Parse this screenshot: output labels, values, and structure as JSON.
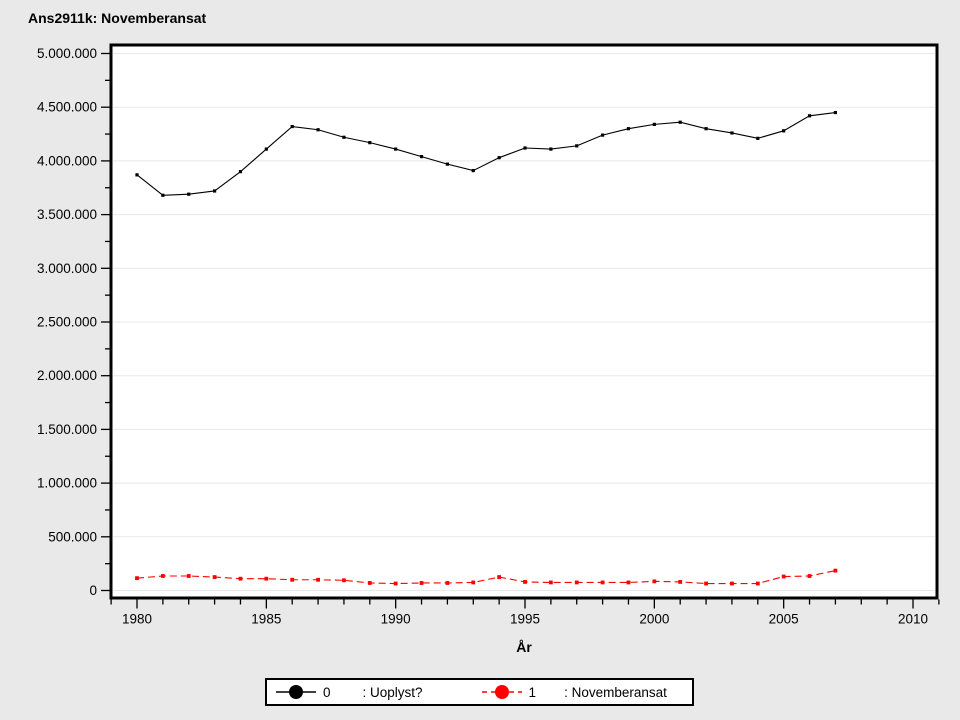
{
  "window": {
    "title": "Ans2911k: Novemberansat"
  },
  "colors": {
    "page_background": "#e9e9e9",
    "plot_background": "#ffffff",
    "axis_frame": "#000000",
    "gridline": "#e8e8e8",
    "series0": "#000000",
    "series1": "#ff0000"
  },
  "chart_data": {
    "type": "line",
    "title": "Ans2911k: Novemberansat",
    "xlabel": "År",
    "ylabel": "",
    "x": [
      1980,
      1981,
      1982,
      1983,
      1984,
      1985,
      1986,
      1987,
      1988,
      1989,
      1990,
      1991,
      1992,
      1993,
      1994,
      1995,
      1996,
      1997,
      1998,
      1999,
      2000,
      2001,
      2002,
      2003,
      2004,
      2005,
      2006,
      2007
    ],
    "series": [
      {
        "name": "0",
        "legend_label": ": Uoplyst?",
        "color": "#000000",
        "line_style": "solid",
        "marker": "square",
        "values": [
          3870000,
          3680000,
          3690000,
          3720000,
          3900000,
          4110000,
          4320000,
          4290000,
          4220000,
          4170000,
          4110000,
          4040000,
          3970000,
          3910000,
          4030000,
          4120000,
          4110000,
          4140000,
          4240000,
          4300000,
          4340000,
          4360000,
          4300000,
          4260000,
          4210000,
          4280000,
          4420000,
          4450000
        ]
      },
      {
        "name": "1",
        "legend_label": ": Novemberansat",
        "color": "#ff0000",
        "line_style": "dashed",
        "marker": "square",
        "values": [
          115000,
          135000,
          135000,
          125000,
          110000,
          110000,
          100000,
          100000,
          95000,
          70000,
          65000,
          70000,
          70000,
          75000,
          125000,
          80000,
          75000,
          75000,
          75000,
          75000,
          85000,
          80000,
          65000,
          65000,
          65000,
          130000,
          135000,
          185000
        ]
      }
    ],
    "xlim": [
      1979,
      2011
    ],
    "ylim": [
      0,
      5000000
    ],
    "x_major_ticks": [
      1980,
      1985,
      1990,
      1995,
      2000,
      2005,
      2010
    ],
    "x_tick_labels": [
      "1980",
      "1985",
      "1990",
      "1995",
      "2000",
      "2005",
      "2010"
    ],
    "x_minor_step": 1,
    "y_major_ticks": [
      0,
      500000,
      1000000,
      1500000,
      2000000,
      2500000,
      3000000,
      3500000,
      4000000,
      4500000,
      5000000
    ],
    "y_tick_labels": [
      "0",
      "500.000",
      "1.000.000",
      "1.500.000",
      "2.000.000",
      "2.500.000",
      "3.000.000",
      "3.500.000",
      "4.000.000",
      "4.500.000",
      "5.000.000"
    ],
    "y_minor_step": 250000,
    "grid": "horizontal-major-only",
    "legend_position": "bottom-center"
  },
  "legend": {
    "entries": [
      {
        "value": "0",
        "label": ": Uoplyst?"
      },
      {
        "value": "1",
        "label": ": Novemberansat"
      }
    ]
  }
}
